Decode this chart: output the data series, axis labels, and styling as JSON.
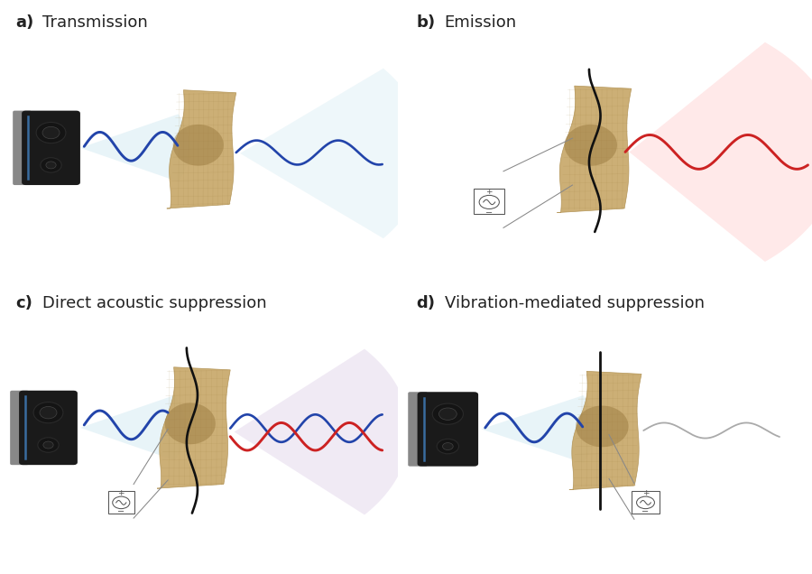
{
  "panels": [
    {
      "label": "a)",
      "title": "Transmission",
      "col": 0,
      "row": 0
    },
    {
      "label": "b)",
      "title": "Emission",
      "col": 1,
      "row": 0
    },
    {
      "label": "c)",
      "title": "Direct acoustic suppression",
      "col": 0,
      "row": 1
    },
    {
      "label": "d)",
      "title": "Vibration-mediated suppression",
      "col": 1,
      "row": 1
    }
  ],
  "bg_color": "#ffffff",
  "label_fontsize": 13,
  "title_fontsize": 13,
  "wave_blue": "#2244aa",
  "wave_red": "#cc2222",
  "wave_black": "#111111",
  "speaker_dark": "#1a1a1a",
  "speaker_gray": "#888888",
  "fabric_color": "#c8a86a",
  "fabric_shadow": "#9a7a40",
  "beam_blue": "#add8e6",
  "beam_red": "#ffb0b0",
  "beam_purple": "#c8b0d8",
  "ac_symbol_color": "#555555",
  "wire_color": "#888888",
  "gray_wave": "#aaaaaa"
}
